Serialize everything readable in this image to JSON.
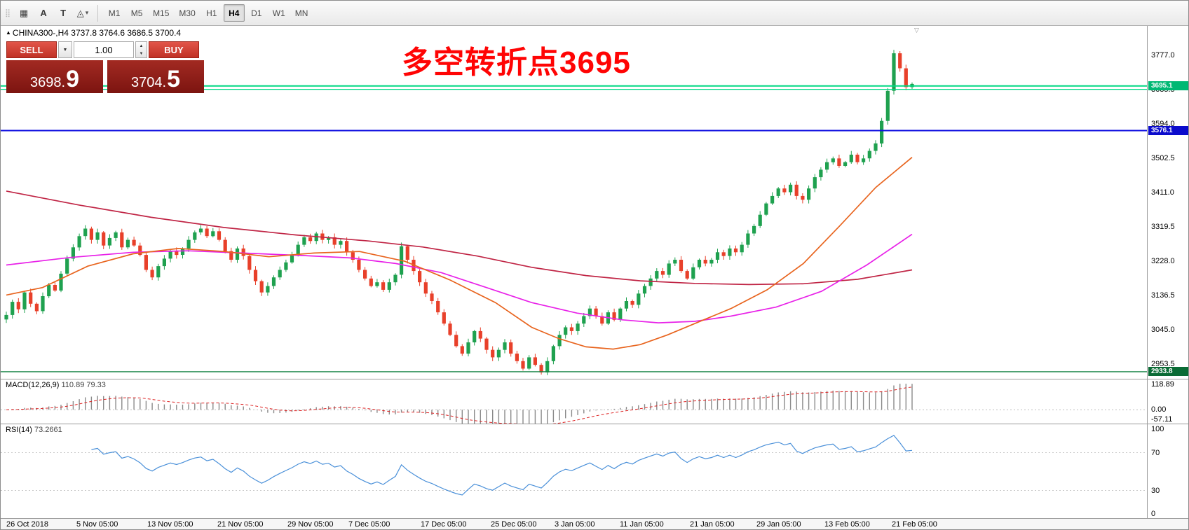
{
  "toolbar": {
    "grip_glyph": "⣿",
    "tools": [
      {
        "name": "chart-grid-tool",
        "glyph": "▦",
        "has_dropdown": false
      },
      {
        "name": "text-label-tool",
        "glyph": "A",
        "has_dropdown": false
      },
      {
        "name": "text-tool",
        "glyph": "T",
        "has_dropdown": false
      },
      {
        "name": "shapes-tool",
        "glyph": "◬",
        "has_dropdown": true
      }
    ],
    "timeframes": [
      "M1",
      "M5",
      "M15",
      "M30",
      "H1",
      "H4",
      "D1",
      "W1",
      "MN"
    ],
    "active_timeframe": "H4"
  },
  "chart": {
    "title_triangle": "▲",
    "title": "CHINA300-,H4  3737.8 3764.6 3686.5 3700.4",
    "annotation": "多空转折点3695",
    "annotation_color": "#ff0404",
    "shift_marker": "▽"
  },
  "trade_panel": {
    "sell_label": "SELL",
    "buy_label": "BUY",
    "volume": "1.00",
    "dropdown_glyph": "▼",
    "spinner_up": "▲",
    "spinner_down": "▼",
    "sell_price": {
      "main": "3698.",
      "big": "9"
    },
    "buy_price": {
      "main": "3704.",
      "big": "5"
    }
  },
  "chart_data": {
    "type": "candlestick",
    "symbol": "CHINA300-",
    "timeframe": "H4",
    "ohlc_current_bar": {
      "open": 3737.8,
      "high": 3764.6,
      "low": 3686.5,
      "close": 3700.4
    },
    "price_axis": {
      "ylim": [
        2915,
        3855
      ],
      "ticks": [
        3777.0,
        3685.5,
        3594.0,
        3502.5,
        3411.0,
        3319.5,
        3228.0,
        3136.5,
        3045.0,
        2953.5
      ]
    },
    "hlines": [
      {
        "value": 3695.1,
        "color": "#00d884",
        "width": 2,
        "badge": "3695.1",
        "badge_bg": "#00b873"
      },
      {
        "value": 3686.0,
        "color": "#00d884",
        "width": 1.2,
        "badge": null,
        "badge_bg": null
      },
      {
        "value": 3576.1,
        "color": "#0b0be0",
        "width": 2,
        "badge": "3576.1",
        "badge_bg": "#0b0bcc"
      },
      {
        "value": 2933.8,
        "color": "#108040",
        "width": 1.4,
        "badge": "2933.8",
        "badge_bg": "#0a6b35"
      }
    ],
    "candle_colors": {
      "up": "#1fa14f",
      "down": "#e8402a"
    },
    "closes": [
      3085,
      3120,
      3100,
      3145,
      3115,
      3095,
      3135,
      3165,
      3150,
      3195,
      3235,
      3265,
      3295,
      3315,
      3285,
      3305,
      3270,
      3290,
      3305,
      3265,
      3285,
      3270,
      3245,
      3205,
      3185,
      3215,
      3235,
      3255,
      3245,
      3262,
      3285,
      3305,
      3315,
      3295,
      3308,
      3285,
      3255,
      3232,
      3262,
      3242,
      3205,
      3175,
      3145,
      3162,
      3185,
      3205,
      3225,
      3245,
      3272,
      3292,
      3282,
      3302,
      3285,
      3292,
      3272,
      3282,
      3252,
      3232,
      3205,
      3182,
      3162,
      3172,
      3152,
      3172,
      3192,
      3268,
      3232,
      3202,
      3172,
      3142,
      3122,
      3092,
      3062,
      3032,
      3002,
      2982,
      3012,
      3042,
      3022,
      2992,
      2972,
      2992,
      3012,
      2982,
      2962,
      2942,
      2972,
      2952,
      2932,
      2962,
      3002,
      3032,
      3052,
      3042,
      3062,
      3082,
      3102,
      3082,
      3062,
      3092,
      3072,
      3102,
      3122,
      3112,
      3142,
      3162,
      3182,
      3202,
      3192,
      3222,
      3232,
      3202,
      3182,
      3212,
      3232,
      3222,
      3232,
      3252,
      3242,
      3262,
      3252,
      3272,
      3302,
      3322,
      3352,
      3382,
      3402,
      3422,
      3412,
      3432,
      3402,
      3392,
      3422,
      3452,
      3472,
      3492,
      3502,
      3482,
      3492,
      3512,
      3492,
      3502,
      3522,
      3542,
      3602,
      3682,
      3782,
      3742,
      3692,
      3700.4
    ],
    "moving_averages": [
      {
        "name": "ma-slow-crimson",
        "color": "#c02545",
        "points": [
          [
            0,
            3415
          ],
          [
            0.08,
            3378
          ],
          [
            0.16,
            3345
          ],
          [
            0.24,
            3318
          ],
          [
            0.32,
            3298
          ],
          [
            0.4,
            3282
          ],
          [
            0.46,
            3266
          ],
          [
            0.52,
            3242
          ],
          [
            0.58,
            3212
          ],
          [
            0.64,
            3190
          ],
          [
            0.7,
            3176
          ],
          [
            0.76,
            3169
          ],
          [
            0.82,
            3166
          ],
          [
            0.88,
            3168
          ],
          [
            0.94,
            3180
          ],
          [
            1,
            3205
          ]
        ]
      },
      {
        "name": "ma-mid-magenta",
        "color": "#e822e8",
        "points": [
          [
            0,
            3218
          ],
          [
            0.07,
            3238
          ],
          [
            0.14,
            3252
          ],
          [
            0.2,
            3256
          ],
          [
            0.27,
            3249
          ],
          [
            0.33,
            3243
          ],
          [
            0.38,
            3237
          ],
          [
            0.43,
            3222
          ],
          [
            0.48,
            3198
          ],
          [
            0.53,
            3158
          ],
          [
            0.58,
            3118
          ],
          [
            0.63,
            3090
          ],
          [
            0.68,
            3072
          ],
          [
            0.72,
            3064
          ],
          [
            0.76,
            3068
          ],
          [
            0.8,
            3082
          ],
          [
            0.85,
            3106
          ],
          [
            0.9,
            3148
          ],
          [
            0.95,
            3218
          ],
          [
            1,
            3300
          ]
        ]
      },
      {
        "name": "ma-fast-orange",
        "color": "#e8641e",
        "points": [
          [
            0,
            3138
          ],
          [
            0.04,
            3158
          ],
          [
            0.09,
            3215
          ],
          [
            0.14,
            3248
          ],
          [
            0.19,
            3262
          ],
          [
            0.24,
            3254
          ],
          [
            0.29,
            3240
          ],
          [
            0.34,
            3250
          ],
          [
            0.39,
            3254
          ],
          [
            0.44,
            3228
          ],
          [
            0.49,
            3178
          ],
          [
            0.54,
            3118
          ],
          [
            0.58,
            3052
          ],
          [
            0.61,
            3022
          ],
          [
            0.64,
            3000
          ],
          [
            0.67,
            2994
          ],
          [
            0.7,
            3006
          ],
          [
            0.73,
            3032
          ],
          [
            0.76,
            3062
          ],
          [
            0.8,
            3102
          ],
          [
            0.84,
            3152
          ],
          [
            0.88,
            3222
          ],
          [
            0.92,
            3322
          ],
          [
            0.96,
            3425
          ],
          [
            1,
            3505
          ]
        ]
      }
    ],
    "macd": {
      "label": "MACD(12,26,9)",
      "values": "110.89 79.33",
      "fast": 12,
      "slow": 26,
      "signal": 9,
      "axis_ticks": [
        "118.89",
        "0.00",
        "-57.11"
      ],
      "axis_range": [
        118.89,
        -57.11
      ],
      "histogram_color": "#8a8a8a",
      "signal_color": "#dd2222"
    },
    "rsi": {
      "label": "RSI(14)",
      "value": "73.2661",
      "period": 14,
      "axis_ticks": [
        "100",
        "70",
        "30",
        "0"
      ],
      "levels": [
        70,
        30
      ],
      "line_color": "#4a90d9"
    },
    "time_axis": [
      {
        "label": "26 Oct 2018",
        "x": 0.005
      },
      {
        "label": "5 Nov 05:00",
        "x": 0.066
      },
      {
        "label": "13 Nov 05:00",
        "x": 0.128
      },
      {
        "label": "21 Nov 05:00",
        "x": 0.189
      },
      {
        "label": "29 Nov 05:00",
        "x": 0.25
      },
      {
        "label": "7 Dec 05:00",
        "x": 0.303
      },
      {
        "label": "17 Dec 05:00",
        "x": 0.366
      },
      {
        "label": "25 Dec 05:00",
        "x": 0.427
      },
      {
        "label": "3 Jan 05:00",
        "x": 0.483
      },
      {
        "label": "11 Jan 05:00",
        "x": 0.54
      },
      {
        "label": "21 Jan 05:00",
        "x": 0.601
      },
      {
        "label": "29 Jan 05:00",
        "x": 0.659
      },
      {
        "label": "13 Feb 05:00",
        "x": 0.718
      },
      {
        "label": "21 Feb 05:00",
        "x": 0.777
      }
    ]
  }
}
